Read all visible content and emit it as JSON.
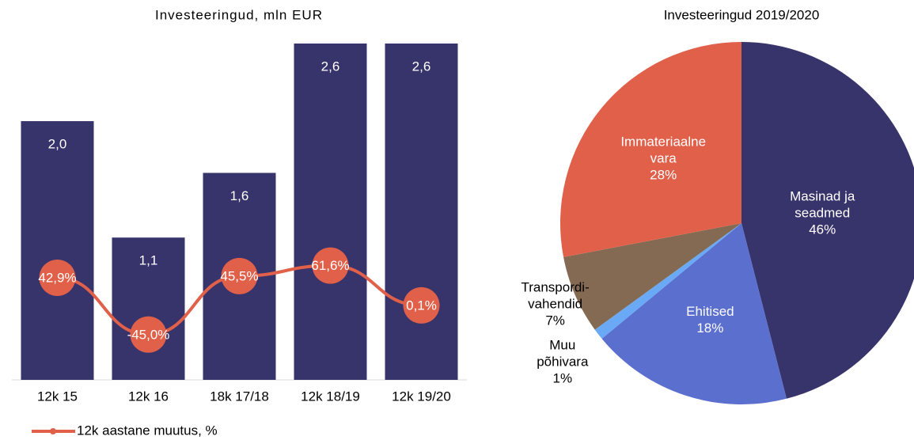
{
  "chart_data": [
    {
      "type": "bar-line",
      "title": "Investeeringud, mln EUR",
      "categories": [
        "12k 15",
        "12k 16",
        "18k 17/18",
        "12k 18/19",
        "12k 19/20"
      ],
      "ylim": [
        0,
        2.6
      ],
      "y2lim": [
        -115,
        405
      ],
      "series": [
        {
          "type": "bar",
          "color": "#37336b",
          "values": [
            2.0,
            1.1,
            1.6,
            2.6,
            2.6
          ],
          "value_labels": [
            "2,0",
            "1,1",
            "1,6",
            "2,6",
            "2,6"
          ]
        },
        {
          "type": "line",
          "name": "12k aastane muutus, %",
          "color": "#e0604a",
          "axis": "y2",
          "values": [
            42.9,
            -45.0,
            45.5,
            61.6,
            0.1
          ],
          "value_labels": [
            "42,9%",
            "-45,0%",
            "45,5%",
            "61,6%",
            "0,1%"
          ]
        }
      ]
    },
    {
      "type": "pie",
      "title": "Investeeringud 2019/2020",
      "categories": [
        "Masinad ja\nseadmed",
        "Ehitised",
        "Muu\npõhivara",
        "Transpordi-\nvahendid",
        "Immateriaalne\nvara"
      ],
      "values": [
        46,
        18,
        1,
        7,
        28
      ],
      "value_labels": [
        "46%",
        "18%",
        "1%",
        "7%",
        "28%"
      ],
      "colors": [
        "#37336b",
        "#5b6fcf",
        "#6aa9f5",
        "#846a52",
        "#e0604a"
      ]
    }
  ]
}
